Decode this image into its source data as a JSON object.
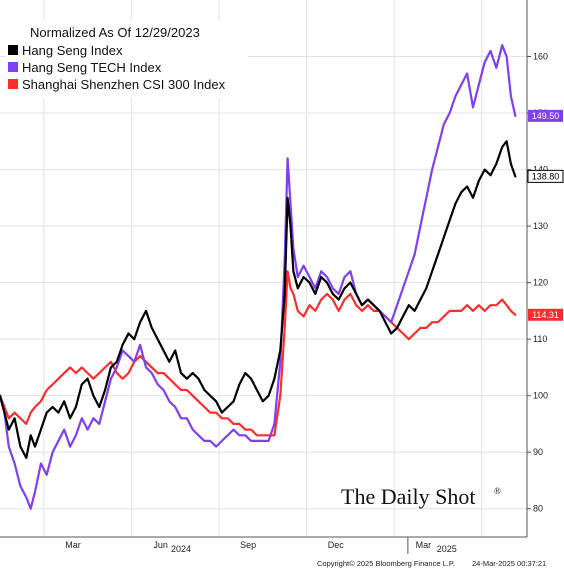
{
  "chart_data": {
    "type": "line",
    "title": "Normalized As Of 12/29/2023",
    "xlabel": "",
    "ylabel": "",
    "ylim": [
      75,
      170
    ],
    "yticks": [
      80,
      90,
      100,
      110,
      120,
      130,
      140,
      150,
      160
    ],
    "x_month_labels": [
      "Mar",
      "Jun",
      "Sep",
      "Dec",
      "Mar"
    ],
    "x_year_labels": [
      "2024",
      "2025"
    ],
    "grid": true,
    "legend_position": "top-left",
    "series": [
      {
        "name": "Hang Seng Index",
        "color": "#000000",
        "last_value_label": "138.80",
        "points": [
          [
            0,
            100
          ],
          [
            0.15,
            97
          ],
          [
            0.3,
            94
          ],
          [
            0.5,
            96
          ],
          [
            0.7,
            91
          ],
          [
            0.9,
            89
          ],
          [
            1.05,
            93
          ],
          [
            1.2,
            91
          ],
          [
            1.4,
            94
          ],
          [
            1.6,
            97
          ],
          [
            1.8,
            98
          ],
          [
            2,
            97
          ],
          [
            2.2,
            99
          ],
          [
            2.4,
            96
          ],
          [
            2.6,
            98
          ],
          [
            2.8,
            102
          ],
          [
            3,
            103
          ],
          [
            3.2,
            100
          ],
          [
            3.4,
            98
          ],
          [
            3.6,
            101
          ],
          [
            3.8,
            105
          ],
          [
            4,
            106
          ],
          [
            4.2,
            109
          ],
          [
            4.4,
            111
          ],
          [
            4.6,
            110
          ],
          [
            4.8,
            113
          ],
          [
            5,
            115
          ],
          [
            5.2,
            112
          ],
          [
            5.4,
            110
          ],
          [
            5.6,
            108
          ],
          [
            5.8,
            106
          ],
          [
            6,
            108
          ],
          [
            6.2,
            104
          ],
          [
            6.4,
            103
          ],
          [
            6.6,
            104
          ],
          [
            6.8,
            103
          ],
          [
            7,
            101
          ],
          [
            7.2,
            100
          ],
          [
            7.4,
            99
          ],
          [
            7.6,
            97
          ],
          [
            7.8,
            98
          ],
          [
            8,
            99
          ],
          [
            8.2,
            102
          ],
          [
            8.4,
            104
          ],
          [
            8.6,
            103
          ],
          [
            8.8,
            101
          ],
          [
            9,
            99
          ],
          [
            9.2,
            100
          ],
          [
            9.4,
            103
          ],
          [
            9.6,
            108
          ],
          [
            9.75,
            118
          ],
          [
            9.85,
            135
          ],
          [
            9.95,
            130
          ],
          [
            10.05,
            122
          ],
          [
            10.2,
            119
          ],
          [
            10.4,
            121
          ],
          [
            10.6,
            120
          ],
          [
            10.8,
            118
          ],
          [
            11,
            121
          ],
          [
            11.2,
            120
          ],
          [
            11.4,
            118
          ],
          [
            11.6,
            117
          ],
          [
            11.8,
            119
          ],
          [
            12,
            120
          ],
          [
            12.2,
            118
          ],
          [
            12.4,
            116
          ],
          [
            12.6,
            117
          ],
          [
            12.8,
            116
          ],
          [
            13,
            115
          ],
          [
            13.2,
            113
          ],
          [
            13.4,
            111
          ],
          [
            13.6,
            112
          ],
          [
            13.8,
            114
          ],
          [
            14,
            116
          ],
          [
            14.2,
            115
          ],
          [
            14.4,
            117
          ],
          [
            14.6,
            119
          ],
          [
            14.8,
            122
          ],
          [
            15,
            125
          ],
          [
            15.2,
            128
          ],
          [
            15.4,
            131
          ],
          [
            15.6,
            134
          ],
          [
            15.8,
            136
          ],
          [
            16,
            137
          ],
          [
            16.2,
            135
          ],
          [
            16.4,
            138
          ],
          [
            16.6,
            140
          ],
          [
            16.8,
            139
          ],
          [
            17,
            141
          ],
          [
            17.2,
            144
          ],
          [
            17.35,
            145
          ],
          [
            17.5,
            141
          ],
          [
            17.65,
            138.8
          ]
        ]
      },
      {
        "name": "Hang Seng TECH Index",
        "color": "#7f3ff5",
        "last_value_label": "149.50",
        "points": [
          [
            0,
            100
          ],
          [
            0.15,
            97
          ],
          [
            0.3,
            91
          ],
          [
            0.5,
            88
          ],
          [
            0.7,
            84
          ],
          [
            0.9,
            82
          ],
          [
            1.05,
            80
          ],
          [
            1.2,
            83
          ],
          [
            1.4,
            88
          ],
          [
            1.6,
            86
          ],
          [
            1.8,
            90
          ],
          [
            2,
            92
          ],
          [
            2.2,
            94
          ],
          [
            2.4,
            91
          ],
          [
            2.6,
            93
          ],
          [
            2.8,
            96
          ],
          [
            3,
            94
          ],
          [
            3.2,
            96
          ],
          [
            3.4,
            95
          ],
          [
            3.6,
            99
          ],
          [
            3.8,
            103
          ],
          [
            4,
            105
          ],
          [
            4.2,
            108
          ],
          [
            4.4,
            107
          ],
          [
            4.6,
            106
          ],
          [
            4.8,
            109
          ],
          [
            5,
            105
          ],
          [
            5.2,
            104
          ],
          [
            5.4,
            102
          ],
          [
            5.6,
            101
          ],
          [
            5.8,
            99
          ],
          [
            6,
            98
          ],
          [
            6.2,
            96
          ],
          [
            6.4,
            96
          ],
          [
            6.6,
            94
          ],
          [
            6.8,
            93
          ],
          [
            7,
            92
          ],
          [
            7.2,
            92
          ],
          [
            7.4,
            91
          ],
          [
            7.6,
            92
          ],
          [
            7.8,
            93
          ],
          [
            8,
            94
          ],
          [
            8.2,
            93
          ],
          [
            8.4,
            93
          ],
          [
            8.6,
            92
          ],
          [
            8.8,
            92
          ],
          [
            9,
            92
          ],
          [
            9.2,
            92
          ],
          [
            9.4,
            95
          ],
          [
            9.6,
            106
          ],
          [
            9.75,
            124
          ],
          [
            9.85,
            142
          ],
          [
            9.95,
            134
          ],
          [
            10.05,
            126
          ],
          [
            10.2,
            121
          ],
          [
            10.4,
            123
          ],
          [
            10.6,
            121
          ],
          [
            10.8,
            119
          ],
          [
            11,
            122
          ],
          [
            11.2,
            121
          ],
          [
            11.4,
            119
          ],
          [
            11.6,
            118
          ],
          [
            11.8,
            121
          ],
          [
            12,
            122
          ],
          [
            12.2,
            118
          ],
          [
            12.4,
            116
          ],
          [
            12.6,
            117
          ],
          [
            12.8,
            116
          ],
          [
            13,
            115
          ],
          [
            13.2,
            114
          ],
          [
            13.4,
            113
          ],
          [
            13.6,
            116
          ],
          [
            13.8,
            119
          ],
          [
            14,
            122
          ],
          [
            14.2,
            125
          ],
          [
            14.4,
            130
          ],
          [
            14.6,
            135
          ],
          [
            14.8,
            140
          ],
          [
            15,
            144
          ],
          [
            15.2,
            148
          ],
          [
            15.4,
            150
          ],
          [
            15.6,
            153
          ],
          [
            15.8,
            155
          ],
          [
            16,
            157
          ],
          [
            16.2,
            151
          ],
          [
            16.4,
            155
          ],
          [
            16.6,
            159
          ],
          [
            16.8,
            161
          ],
          [
            17,
            158
          ],
          [
            17.2,
            162
          ],
          [
            17.35,
            160
          ],
          [
            17.5,
            153
          ],
          [
            17.65,
            149.5
          ]
        ]
      },
      {
        "name": "Shanghai Shenzhen CSI 300 Index",
        "color": "#ff2d2d",
        "last_value_label": "114.31",
        "points": [
          [
            0,
            100
          ],
          [
            0.15,
            98
          ],
          [
            0.3,
            96
          ],
          [
            0.5,
            97
          ],
          [
            0.7,
            96
          ],
          [
            0.9,
            95
          ],
          [
            1.05,
            97
          ],
          [
            1.2,
            98
          ],
          [
            1.4,
            99
          ],
          [
            1.6,
            101
          ],
          [
            1.8,
            102
          ],
          [
            2,
            103
          ],
          [
            2.2,
            104
          ],
          [
            2.4,
            105
          ],
          [
            2.6,
            104
          ],
          [
            2.8,
            105
          ],
          [
            3,
            104
          ],
          [
            3.2,
            103
          ],
          [
            3.4,
            104
          ],
          [
            3.6,
            105
          ],
          [
            3.8,
            106
          ],
          [
            4,
            104
          ],
          [
            4.2,
            103
          ],
          [
            4.4,
            104
          ],
          [
            4.6,
            106
          ],
          [
            4.8,
            107
          ],
          [
            5,
            106
          ],
          [
            5.2,
            105
          ],
          [
            5.4,
            104
          ],
          [
            5.6,
            104
          ],
          [
            5.8,
            103
          ],
          [
            6,
            102
          ],
          [
            6.2,
            101
          ],
          [
            6.4,
            101
          ],
          [
            6.6,
            100
          ],
          [
            6.8,
            99
          ],
          [
            7,
            98
          ],
          [
            7.2,
            97
          ],
          [
            7.4,
            97
          ],
          [
            7.6,
            96
          ],
          [
            7.8,
            96
          ],
          [
            8,
            95
          ],
          [
            8.2,
            95
          ],
          [
            8.4,
            94
          ],
          [
            8.6,
            94
          ],
          [
            8.8,
            93
          ],
          [
            9,
            93
          ],
          [
            9.2,
            93
          ],
          [
            9.4,
            93
          ],
          [
            9.6,
            100
          ],
          [
            9.75,
            112
          ],
          [
            9.85,
            122
          ],
          [
            9.95,
            119
          ],
          [
            10.05,
            118
          ],
          [
            10.2,
            115
          ],
          [
            10.4,
            114
          ],
          [
            10.6,
            116
          ],
          [
            10.8,
            115
          ],
          [
            11,
            117
          ],
          [
            11.2,
            118
          ],
          [
            11.4,
            117
          ],
          [
            11.6,
            115
          ],
          [
            11.8,
            117
          ],
          [
            12,
            118
          ],
          [
            12.2,
            116
          ],
          [
            12.4,
            115
          ],
          [
            12.6,
            116
          ],
          [
            12.8,
            115
          ],
          [
            13,
            115
          ],
          [
            13.2,
            114
          ],
          [
            13.4,
            113
          ],
          [
            13.6,
            112
          ],
          [
            13.8,
            111
          ],
          [
            14,
            110
          ],
          [
            14.2,
            111
          ],
          [
            14.4,
            112
          ],
          [
            14.6,
            112
          ],
          [
            14.8,
            113
          ],
          [
            15,
            113
          ],
          [
            15.2,
            114
          ],
          [
            15.4,
            115
          ],
          [
            15.6,
            115
          ],
          [
            15.8,
            115
          ],
          [
            16,
            116
          ],
          [
            16.2,
            115
          ],
          [
            16.4,
            116
          ],
          [
            16.6,
            115
          ],
          [
            16.8,
            116
          ],
          [
            17,
            116
          ],
          [
            17.2,
            117
          ],
          [
            17.35,
            116
          ],
          [
            17.5,
            115
          ],
          [
            17.65,
            114.31
          ]
        ]
      }
    ]
  },
  "branding": {
    "logo_text": "The Daily Shot",
    "logo_mark": "®"
  },
  "footer": {
    "copyright": "Copyright© 2025 Bloomberg Finance L.P.",
    "timestamp": "24-Mar-2025 00:37:21"
  }
}
